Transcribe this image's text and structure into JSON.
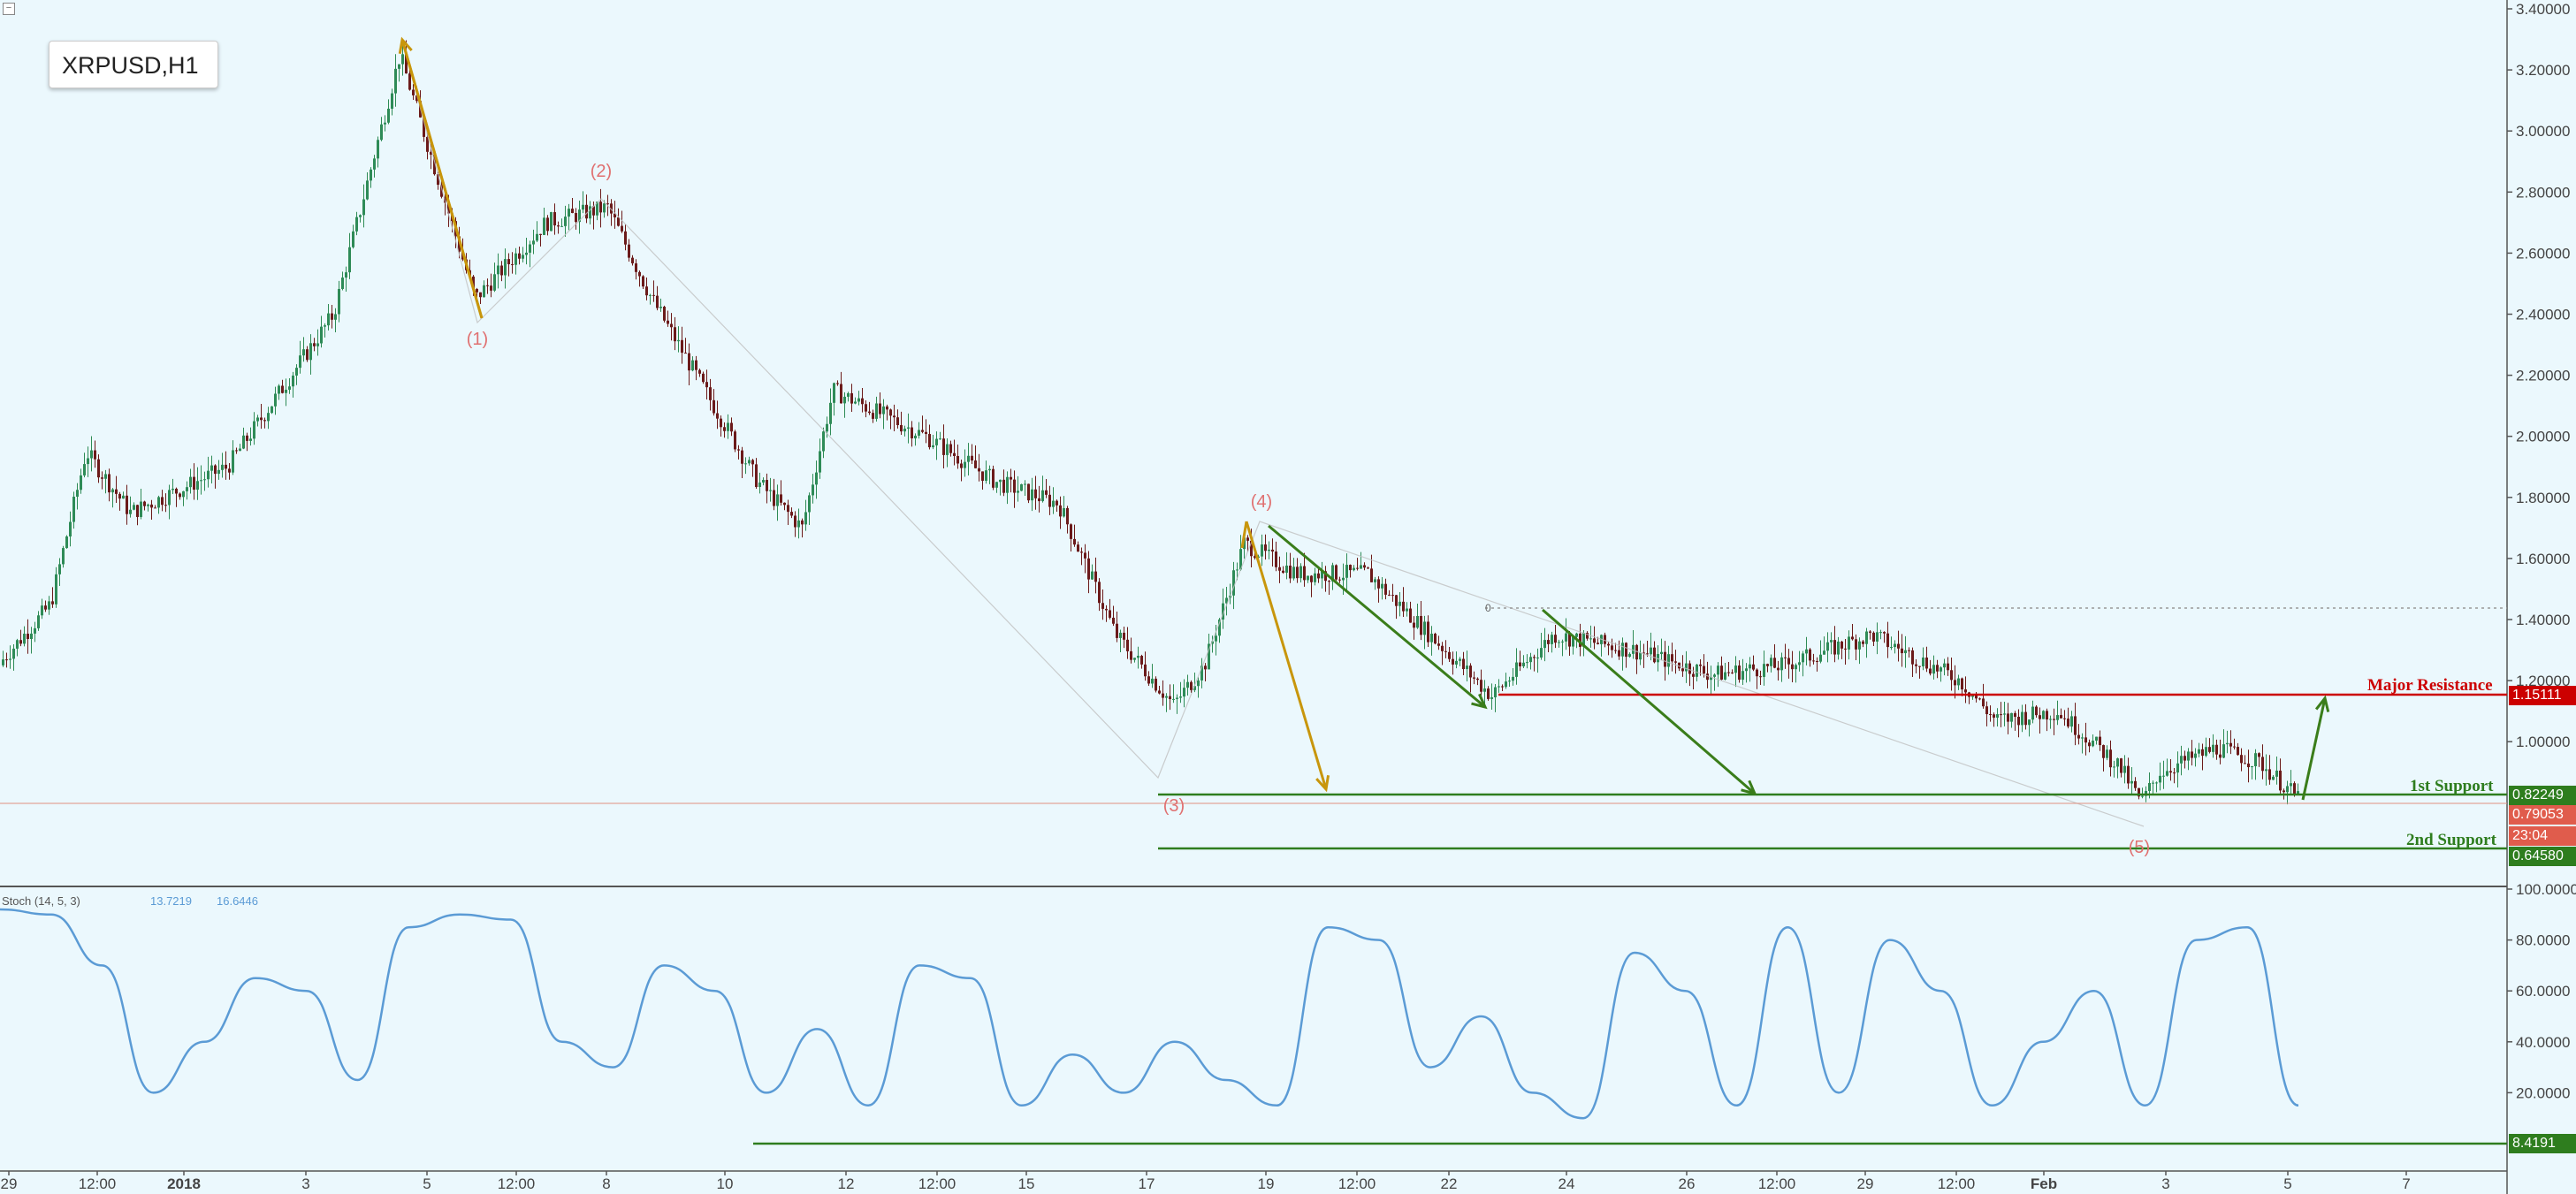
{
  "symbol": "XRPUSD,H1",
  "collapse_icon": "minus-square-icon",
  "colors": {
    "background": "#ebf8fd",
    "bull": "#2e8b57",
    "bear": "#6b1a1a",
    "resistance": "#cc0000",
    "support": "#2e7d1e",
    "stoch": "#5b9bd5",
    "orange_arrow": "#c8960c",
    "green_arrow": "#3a7d1a",
    "wave_label": "#e07070"
  },
  "price_axis": {
    "labels": [
      "3.40000",
      "3.20000",
      "3.00000",
      "2.80000",
      "2.60000",
      "2.40000",
      "2.20000",
      "2.00000",
      "1.80000",
      "1.60000",
      "1.40000",
      "1.20000",
      "1.00000"
    ]
  },
  "time_axis": {
    "labels": [
      "29",
      "12:00",
      "2018",
      "3",
      "5",
      "12:00",
      "8",
      "10",
      "12",
      "12:00",
      "15",
      "17",
      "19",
      "12:00",
      "22",
      "24",
      "26",
      "12:00",
      "29",
      "12:00",
      "Feb",
      "3",
      "5",
      "7"
    ]
  },
  "levels": {
    "major_resistance": {
      "label": "Major Resistance",
      "value": "1.15111"
    },
    "support1": {
      "label": "1st Support",
      "value": "0.82249"
    },
    "current": {
      "value": "0.79053",
      "countdown": "23:04"
    },
    "support2": {
      "label": "2nd Support",
      "value": "0.64580"
    },
    "fib_zero": "0"
  },
  "waves": [
    "(1)",
    "(2)",
    "(3)",
    "(4)",
    "(5)"
  ],
  "indicator": {
    "name": "Stoch (14, 5, 3)",
    "value_k": "13.7219",
    "value_d": "16.6446",
    "axis_labels": [
      "100.0000",
      "80.0000",
      "60.0000",
      "40.0000",
      "20.0000"
    ],
    "current_tag": "8.4191"
  },
  "chart_data": {
    "type": "line",
    "series": [
      {
        "x": [
          "29",
          "12:00",
          "2018",
          "3",
          "5",
          "12:00",
          "8",
          "10",
          "12",
          "12:00",
          "15",
          "17",
          "19",
          "12:00",
          "22",
          "24",
          "26",
          "12:00",
          "29",
          "12:00",
          "Feb",
          "3",
          "5"
        ],
        "values": [
          1.25,
          1.6,
          1.95,
          2.2,
          3.2,
          2.55,
          2.7,
          2.35,
          1.65,
          2.05,
          1.85,
          1.35,
          1.6,
          1.55,
          1.3,
          1.35,
          1.2,
          1.25,
          1.3,
          1.15,
          0.85,
          0.95,
          0.82
        ]
      }
    ],
    "price_ylim": [
      0.55,
      3.4
    ],
    "stoch": {
      "x_count": 24,
      "values": [
        92,
        90,
        70,
        20,
        40,
        65,
        60,
        25,
        85,
        90,
        88,
        40,
        30,
        70,
        60,
        20,
        45,
        15,
        70,
        65,
        15,
        35,
        20,
        40,
        25,
        15,
        85,
        80,
        30,
        50,
        20,
        10,
        75,
        60,
        15,
        85,
        20,
        80,
        60,
        15,
        40,
        60,
        15,
        80,
        85,
        15
      ]
    },
    "stoch_ylim": [
      0,
      100
    ]
  }
}
